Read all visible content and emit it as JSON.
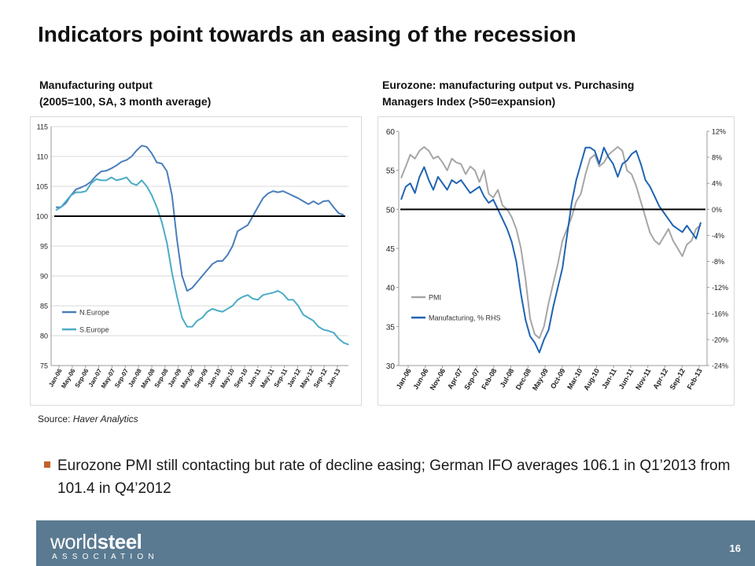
{
  "slide": {
    "title": "Indicators point towards an easing of the recession",
    "source_prefix": "Source: ",
    "source_name": "Haver Analytics",
    "bullet": "Eurozone PMI still contacting but rate of decline easing; German IFO averages 106.1 in Q1’2013 from 101.4 in Q4’2012",
    "page_number": "16",
    "logo_text_light": "world",
    "logo_text_bold": "steel",
    "logo_subtext": "ASSOCIATION",
    "colors": {
      "footer": "#5a7a91",
      "bullet_marker": "#c0622a"
    }
  },
  "chart_data": [
    {
      "type": "line",
      "title_line1": "Manufacturing output",
      "title_line2": "(2005=100, SA, 3 month average)",
      "x_tick_labels": [
        "Jan-06",
        "May-06",
        "Sep-06",
        "Jan-07",
        "May-07",
        "Sep-07",
        "Jan-08",
        "May-08",
        "Sep-08",
        "Jan-09",
        "May-09",
        "Sep-09",
        "Jan-10",
        "May-10",
        "Sep-10",
        "Jan-11",
        "May-11",
        "Sep-11",
        "Jan-12",
        "May-12",
        "Sep-12",
        "Jan-13"
      ],
      "ylim": [
        75,
        115
      ],
      "y_ticks": [
        75,
        80,
        85,
        90,
        95,
        100,
        105,
        110,
        115
      ],
      "reference_line": 100,
      "legend_position": "bottom-left",
      "series": [
        {
          "name": "N.Europe",
          "color": "#4a7ebb",
          "values": [
            101.5,
            101.5,
            102.2,
            103.5,
            104.5,
            104.8,
            105.2,
            105.8,
            106.8,
            107.5,
            107.6,
            108.0,
            108.5,
            109.1,
            109.4,
            110.0,
            111.0,
            111.8,
            111.6,
            110.5,
            109.0,
            108.8,
            107.5,
            103.5,
            96.0,
            90.0,
            87.5,
            88.0,
            89.0,
            90.0,
            91.0,
            92.0,
            92.5,
            92.5,
            93.5,
            95.0,
            97.5,
            98.0,
            98.5,
            100.0,
            101.5,
            103.0,
            103.8,
            104.2,
            104.0,
            104.2,
            103.8,
            103.4,
            103.0,
            102.5,
            102.0,
            102.5,
            102.0,
            102.5,
            102.6,
            101.5,
            100.5,
            100.2
          ]
        },
        {
          "name": "S.Europe",
          "color": "#4bacc6",
          "values": [
            101.0,
            101.5,
            102.5,
            103.5,
            104.0,
            104.0,
            104.2,
            105.5,
            106.2,
            106.0,
            106.0,
            106.5,
            106.0,
            106.2,
            106.5,
            105.5,
            105.2,
            106.0,
            105.0,
            103.5,
            101.5,
            99.0,
            95.5,
            90.5,
            86.5,
            83.0,
            81.5,
            81.5,
            82.5,
            83.0,
            84.0,
            84.5,
            84.2,
            84.0,
            84.5,
            85.0,
            86.0,
            86.5,
            86.8,
            86.2,
            86.0,
            86.8,
            87.0,
            87.2,
            87.5,
            87.0,
            86.0,
            86.0,
            85.0,
            83.5,
            83.0,
            82.5,
            81.5,
            81.0,
            80.8,
            80.5,
            79.5,
            78.8,
            78.5
          ]
        }
      ]
    },
    {
      "type": "line",
      "title_line1": "Eurozone: manufacturing output vs. Purchasing",
      "title_line2": "Managers Index (>50=expansion)",
      "x_tick_labels": [
        "Jan-06",
        "Jun-06",
        "Nov-06",
        "Apr-07",
        "Sep-07",
        "Feb-08",
        "Jul-08",
        "Dec-08",
        "May-09",
        "Oct-09",
        "Mar-10",
        "Aug-10",
        "Jan-11",
        "Jun-11",
        "Nov-11",
        "Apr-12",
        "Sep-12",
        "Feb-13"
      ],
      "y_left": {
        "ylim": [
          30,
          60
        ],
        "ticks": [
          "30",
          "35",
          "40",
          "45",
          "50",
          "55",
          "60"
        ]
      },
      "y_right": {
        "ylim": [
          -24,
          12
        ],
        "ticks": [
          "-24%",
          "-20%",
          "-16%",
          "-12%",
          "-8%",
          "-4%",
          "0%",
          "4%",
          "8%",
          "12%"
        ]
      },
      "reference_line": 50,
      "legend_position": "bottom-left",
      "series": [
        {
          "name": "PMI",
          "axis": "left",
          "color": "#a6a6a6",
          "values": [
            54.0,
            55.5,
            57.0,
            56.5,
            57.5,
            58.0,
            57.5,
            56.5,
            56.8,
            56.0,
            55.0,
            56.5,
            56.0,
            55.8,
            54.5,
            55.5,
            55.0,
            53.5,
            55.0,
            52.0,
            51.5,
            52.5,
            50.5,
            50.0,
            49.0,
            47.5,
            45.0,
            41.0,
            36.0,
            34.0,
            33.5,
            35.0,
            38.0,
            40.5,
            43.0,
            46.0,
            47.5,
            49.0,
            51.0,
            52.0,
            54.5,
            56.5,
            57.0,
            55.5,
            56.0,
            57.0,
            57.5,
            58.0,
            57.5,
            55.0,
            54.5,
            53.0,
            51.0,
            49.0,
            47.0,
            46.0,
            45.5,
            46.5,
            47.5,
            46.0,
            45.0,
            44.0,
            45.5,
            46.0,
            47.5,
            48.0
          ]
        },
        {
          "name": "Manufacturing, % RHS",
          "axis": "right",
          "color": "#1f64b3",
          "values": [
            1.5,
            3.5,
            4.0,
            2.5,
            5.0,
            6.5,
            4.5,
            3.0,
            5.0,
            4.0,
            3.0,
            4.5,
            4.0,
            4.5,
            3.5,
            2.5,
            3.0,
            3.5,
            2.0,
            1.0,
            1.5,
            0.0,
            -1.5,
            -3.0,
            -5.0,
            -8.0,
            -13.0,
            -17.0,
            -19.5,
            -20.5,
            -22.0,
            -20.0,
            -18.5,
            -15.0,
            -12.0,
            -9.0,
            -4.0,
            1.0,
            4.5,
            7.0,
            9.5,
            9.5,
            9.0,
            7.0,
            9.5,
            8.0,
            7.0,
            5.0,
            7.0,
            7.5,
            8.5,
            9.0,
            7.0,
            4.5,
            3.5,
            2.0,
            0.5,
            -0.5,
            -1.5,
            -2.5,
            -3.0,
            -3.5,
            -2.5,
            -3.5,
            -4.5,
            -2.0
          ]
        }
      ]
    }
  ]
}
